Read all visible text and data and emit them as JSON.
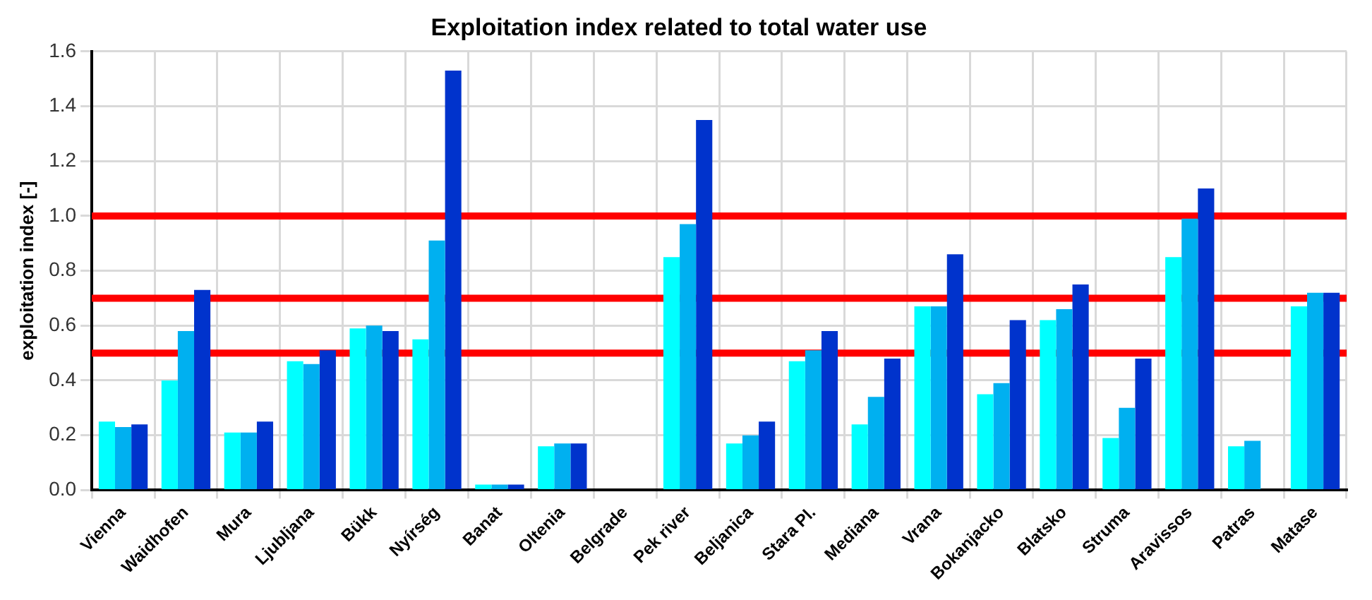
{
  "chart_data": {
    "type": "bar",
    "title": "Exploitation index related to total water use",
    "ylabel": "exploitation index [-]",
    "categories": [
      "Vienna",
      "Waidhofen",
      "Mura",
      "Ljubljana",
      "Bükk",
      "Nyírség",
      "Banat",
      "Oltenia",
      "Belgrade",
      "Pek river",
      "Beljanica",
      "Stara Pl.",
      "Mediana",
      "Vrana",
      "Bokanjacko",
      "Blatsko",
      "Struma",
      "Aravissos",
      "Patras",
      "Matase"
    ],
    "series": [
      {
        "color": "#00ffff",
        "values": [
          0.25,
          0.4,
          0.21,
          0.47,
          0.59,
          0.55,
          0.02,
          0.16,
          null,
          0.85,
          0.17,
          0.47,
          0.24,
          0.67,
          0.35,
          0.62,
          0.19,
          0.85,
          0.16,
          0.67
        ]
      },
      {
        "color": "#00b0f0",
        "values": [
          0.23,
          0.58,
          0.21,
          0.46,
          0.6,
          0.91,
          0.02,
          0.17,
          null,
          0.97,
          0.2,
          0.51,
          0.34,
          0.67,
          0.39,
          0.66,
          0.3,
          0.99,
          0.18,
          0.72
        ]
      },
      {
        "color": "#0033cc",
        "values": [
          0.24,
          0.73,
          0.25,
          0.51,
          0.58,
          1.53,
          0.02,
          0.17,
          null,
          1.35,
          0.25,
          0.58,
          0.48,
          0.86,
          0.62,
          0.75,
          0.48,
          1.1,
          null,
          0.72
        ]
      }
    ],
    "ylim": [
      0,
      1.6
    ],
    "yticks": [
      {
        "value": 0,
        "label": "0.0"
      },
      {
        "value": 0.2,
        "label": "0.2"
      },
      {
        "value": 0.4,
        "label": "0.4"
      },
      {
        "value": 0.6,
        "label": "0.6"
      },
      {
        "value": 0.8,
        "label": "0.8"
      },
      {
        "value": 1,
        "label": "1.0"
      },
      {
        "value": 1.2,
        "label": "1.2"
      },
      {
        "value": 1.4,
        "label": "1.4"
      },
      {
        "value": 1.6,
        "label": "1.6"
      }
    ],
    "grid": true,
    "ref_lines": [
      {
        "axis": "y",
        "value": 1.0,
        "color": "#ff0000"
      },
      {
        "axis": "y",
        "value": 0.7,
        "color": "#ff0000"
      },
      {
        "axis": "y",
        "value": 0.5,
        "color": "#ff0000"
      }
    ]
  }
}
